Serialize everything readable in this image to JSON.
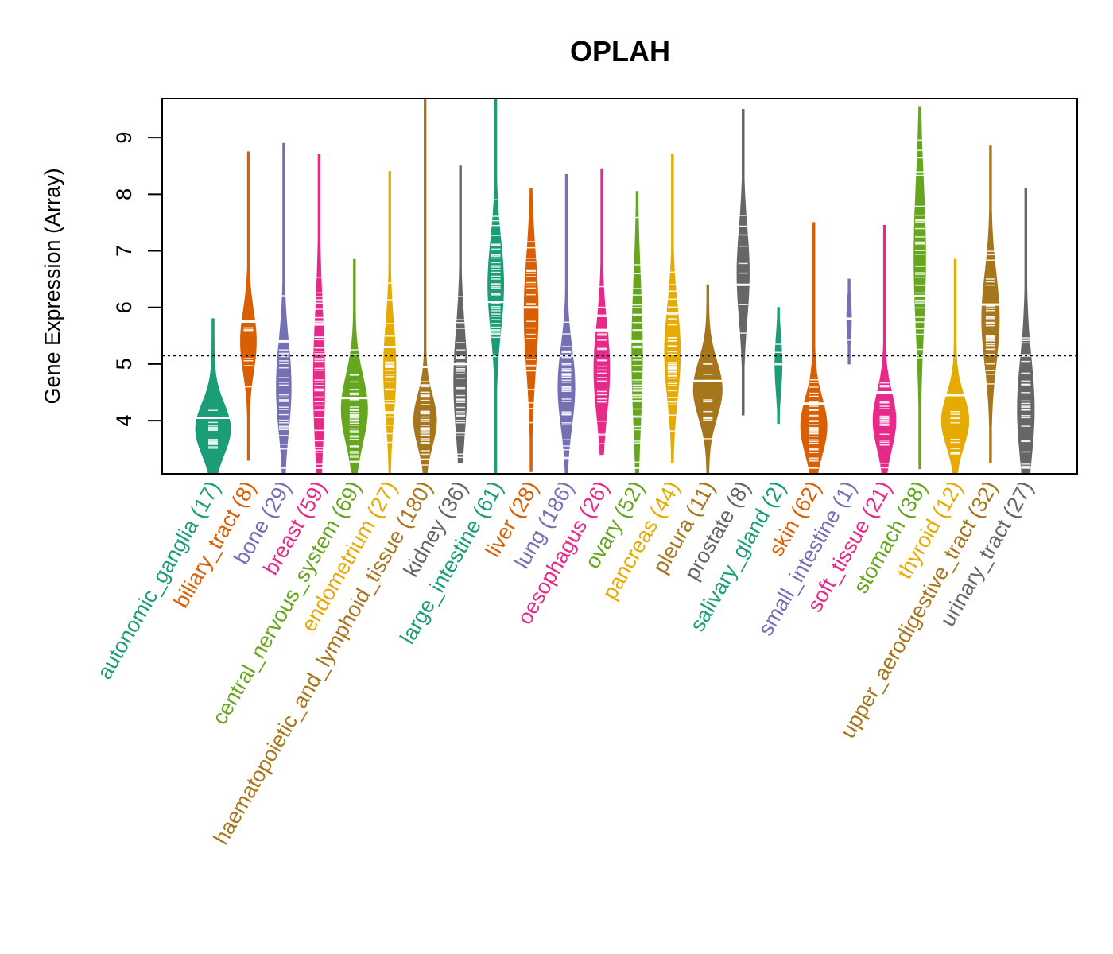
{
  "chart_data": {
    "type": "violin",
    "title": "OPLAH",
    "xlabel": "",
    "ylabel": "Gene Expression (Array)",
    "ylim": [
      3.06,
      9.69
    ],
    "yticks": [
      4,
      5,
      6,
      7,
      8,
      9
    ],
    "reference_line": 5.15,
    "grid": false,
    "palette": [
      "#1B9E77",
      "#D95F02",
      "#7570B3",
      "#E7298A",
      "#66A61E",
      "#E6AB02",
      "#A6761D",
      "#666666"
    ],
    "categories": [
      {
        "name": "autonomic_ganglia",
        "n": 17,
        "min": 3.06,
        "max": 5.8,
        "median": 4.05,
        "mode": 3.85,
        "spread": 0.45,
        "width": 1.0
      },
      {
        "name": "biliary_tract",
        "n": 8,
        "min": 3.3,
        "max": 8.75,
        "median": 5.75,
        "mode": 5.4,
        "spread": 0.55,
        "width": 0.45
      },
      {
        "name": "bone",
        "n": 29,
        "min": 3.06,
        "max": 8.9,
        "median": 5.4,
        "mode": 4.6,
        "spread": 0.8,
        "width": 0.42
      },
      {
        "name": "breast",
        "n": 59,
        "min": 3.06,
        "max": 8.7,
        "median": 5.7,
        "mode": 4.7,
        "spread": 1.2,
        "width": 0.32
      },
      {
        "name": "central_nervous_system",
        "n": 69,
        "min": 3.06,
        "max": 6.85,
        "median": 4.4,
        "mode": 4.2,
        "spread": 0.6,
        "width": 0.75
      },
      {
        "name": "endometrium",
        "n": 27,
        "min": 3.06,
        "max": 8.4,
        "median": 5.3,
        "mode": 4.9,
        "spread": 0.8,
        "width": 0.35
      },
      {
        "name": "haematopoietic_and_lymphoid_tissue",
        "n": 180,
        "min": 3.06,
        "max": 9.69,
        "median": 4.95,
        "mode": 4.0,
        "spread": 0.45,
        "width": 0.65
      },
      {
        "name": "kidney",
        "n": 36,
        "min": 3.25,
        "max": 8.5,
        "median": 5.0,
        "mode": 4.7,
        "spread": 0.9,
        "width": 0.38
      },
      {
        "name": "large_intestine",
        "n": 61,
        "min": 3.06,
        "max": 9.69,
        "median": 6.1,
        "mode": 6.4,
        "spread": 0.8,
        "width": 0.45
      },
      {
        "name": "liver",
        "n": 28,
        "min": 3.1,
        "max": 8.1,
        "median": 6.0,
        "mode": 5.9,
        "spread": 1.0,
        "width": 0.4
      },
      {
        "name": "lung",
        "n": 186,
        "min": 3.06,
        "max": 8.35,
        "median": 5.15,
        "mode": 4.6,
        "spread": 0.7,
        "width": 0.48
      },
      {
        "name": "oesophagus",
        "n": 26,
        "min": 3.4,
        "max": 8.45,
        "median": 5.6,
        "mode": 4.9,
        "spread": 0.8,
        "width": 0.45
      },
      {
        "name": "ovary",
        "n": 52,
        "min": 3.06,
        "max": 8.05,
        "median": 5.4,
        "mode": 5.2,
        "spread": 1.3,
        "width": 0.3
      },
      {
        "name": "pancreas",
        "n": 44,
        "min": 3.25,
        "max": 8.7,
        "median": 5.9,
        "mode": 5.2,
        "spread": 0.8,
        "width": 0.45
      },
      {
        "name": "pleura",
        "n": 11,
        "min": 3.06,
        "max": 6.4,
        "median": 4.7,
        "mode": 4.55,
        "spread": 0.5,
        "width": 0.82
      },
      {
        "name": "prostate",
        "n": 8,
        "min": 4.1,
        "max": 9.5,
        "median": 6.4,
        "mode": 6.6,
        "spread": 0.8,
        "width": 0.35
      },
      {
        "name": "salivary_gland",
        "n": 2,
        "min": 3.95,
        "max": 6.0,
        "median": 5.0,
        "mode": 5.0,
        "spread": 0.5,
        "width": 0.2
      },
      {
        "name": "skin",
        "n": 62,
        "min": 3.06,
        "max": 7.5,
        "median": 4.3,
        "mode": 3.9,
        "spread": 0.5,
        "width": 0.75
      },
      {
        "name": "small_intestine",
        "n": 1,
        "min": 5.0,
        "max": 6.5,
        "median": 5.8,
        "mode": 5.8,
        "spread": 0.35,
        "width": 0.13
      },
      {
        "name": "soft_tissue",
        "n": 21,
        "min": 3.06,
        "max": 7.45,
        "median": 4.5,
        "mode": 4.0,
        "spread": 0.5,
        "width": 0.65
      },
      {
        "name": "stomach",
        "n": 38,
        "min": 3.15,
        "max": 9.55,
        "median": 6.2,
        "mode": 6.9,
        "spread": 1.3,
        "width": 0.33
      },
      {
        "name": "thyroid",
        "n": 12,
        "min": 3.06,
        "max": 6.85,
        "median": 4.45,
        "mode": 4.0,
        "spread": 0.45,
        "width": 0.78
      },
      {
        "name": "upper_aerodigestive_tract",
        "n": 32,
        "min": 3.25,
        "max": 8.85,
        "median": 6.05,
        "mode": 5.8,
        "spread": 0.8,
        "width": 0.5
      },
      {
        "name": "urinary_tract",
        "n": 27,
        "min": 3.06,
        "max": 8.1,
        "median": 5.15,
        "mode": 4.2,
        "spread": 0.9,
        "width": 0.48
      }
    ]
  }
}
